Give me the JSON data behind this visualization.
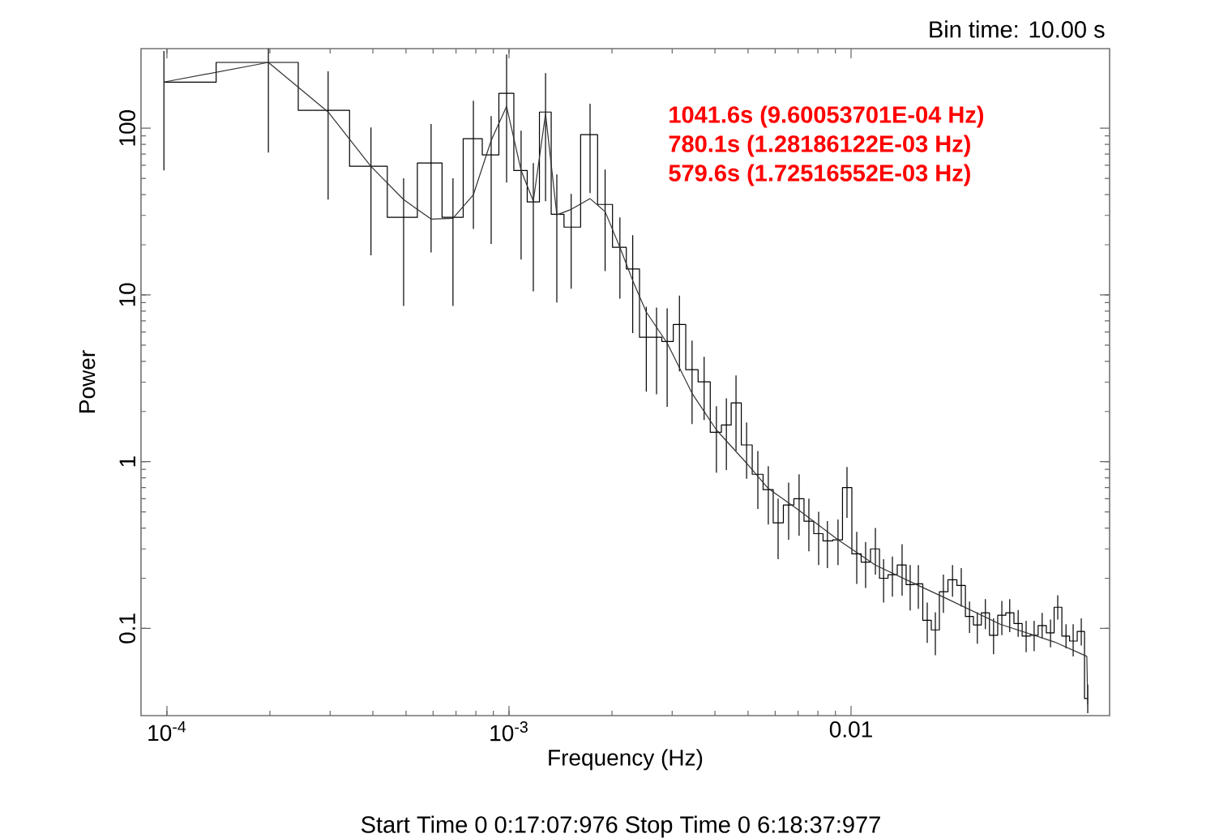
{
  "chart_data": {
    "type": "step",
    "xlabel": "Frequency (Hz)",
    "ylabel": "Power",
    "annotations": [
      "Bin time: 10.00 s",
      "1041.6s (9.60053701E-04 Hz)",
      "780.1s (1.28186122E-03 Hz)",
      "579.6s (1.72516552E-03 Hz)",
      "Start Time 0 0:17:07:976 Stop Time 0 6:18:37:977"
    ],
    "log": "xy",
    "xlim": [
      8.4e-05,
      0.057
    ],
    "ylim": [
      0.03,
      300
    ],
    "xticks": [
      {
        "value": 0.0001,
        "label": "10$^{-4}$"
      },
      {
        "value": 0.001,
        "label": "10$^{-3}$"
      },
      0.01
    ],
    "yticks": [
      0.1,
      1,
      10,
      100
    ],
    "series": [
      {
        "color": "#000000",
        "x": [
          9.8e-05,
          0.000198,
          0.000296,
          0.000395,
          0.000492,
          0.000592,
          0.000686,
          0.000787,
          0.000887,
          0.000984,
          0.001085,
          0.001178,
          0.001279,
          0.00138,
          0.00152,
          0.001726,
          0.00191,
          0.00211,
          0.0023,
          0.00252,
          0.0027,
          0.0029,
          0.00315,
          0.00343,
          0.00372,
          0.00404,
          0.00432,
          0.00461,
          0.00495,
          0.00534,
          0.00573,
          0.00612,
          0.00657,
          0.00705,
          0.00753,
          0.00804,
          0.00853,
          0.00916,
          0.00973,
          0.01039,
          0.01103,
          0.01178,
          0.01245,
          0.01321,
          0.0141,
          0.01489,
          0.01573,
          0.0167,
          0.01764,
          0.01862,
          0.0198,
          0.021,
          0.0222,
          0.0234,
          0.0247,
          0.0261,
          0.0276,
          0.0291,
          0.0308,
          0.0325,
          0.0343,
          0.0362,
          0.0383,
          0.0402,
          0.0425,
          0.0446,
          0.0471,
          0.0492
        ],
        "values": [
          189,
          248,
          128,
          59.1,
          29.2,
          61.8,
          29.2,
          86.5,
          69.2,
          162,
          55.8,
          36.1,
          125,
          30.5,
          25.5,
          91.4,
          34.9,
          19.3,
          14.3,
          5.57,
          5.57,
          5.26,
          6.65,
          3.56,
          3.01,
          1.5,
          1.66,
          2.25,
          1.26,
          0.84,
          0.68,
          0.43,
          0.55,
          0.6,
          0.44,
          0.37,
          0.335,
          0.34,
          0.7,
          0.28,
          0.25,
          0.3,
          0.2,
          0.21,
          0.24,
          0.183,
          0.185,
          0.112,
          0.098,
          0.166,
          0.196,
          0.181,
          0.118,
          0.105,
          0.124,
          0.091,
          0.12,
          0.124,
          0.107,
          0.09,
          0.091,
          0.104,
          0.094,
          0.134,
          0.09,
          0.084,
          0.096,
          0.038
        ],
        "errors": [
          [
            55.8,
            290
          ],
          [
            71.4,
            300
          ],
          [
            37.3,
            219
          ],
          [
            17.3,
            101
          ],
          [
            8.6,
            50
          ],
          [
            18.0,
            106
          ],
          [
            8.6,
            50
          ],
          [
            24.9,
            146
          ],
          [
            20.2,
            118
          ],
          [
            47.2,
            277
          ],
          [
            16.3,
            96.6
          ],
          [
            10.5,
            61.8
          ],
          [
            36.5,
            214
          ],
          [
            9.0,
            52.8
          ],
          [
            10.9,
            40.4
          ],
          [
            40.8,
            140
          ],
          [
            13.9,
            56.5
          ],
          [
            9.5,
            29.2
          ],
          [
            5.9,
            22.8
          ],
          [
            2.63,
            8.5
          ],
          [
            2.54,
            8.4
          ],
          [
            2.13,
            8.3
          ],
          [
            3.48,
            9.9
          ],
          [
            1.68,
            5.32
          ],
          [
            1.78,
            4.26
          ],
          [
            0.86,
            2.15
          ],
          [
            0.89,
            2.4
          ],
          [
            1.16,
            3.29
          ],
          [
            0.79,
            1.72
          ],
          [
            0.52,
            1.16
          ],
          [
            0.42,
            0.94
          ],
          [
            0.26,
            0.6
          ],
          [
            0.34,
            0.75
          ],
          [
            0.36,
            0.84
          ],
          [
            0.29,
            0.6
          ],
          [
            0.24,
            0.5
          ],
          [
            0.23,
            0.44
          ],
          [
            0.24,
            0.45
          ],
          [
            0.46,
            0.93
          ],
          [
            0.185,
            0.38
          ],
          [
            0.175,
            0.33
          ],
          [
            0.21,
            0.4
          ],
          [
            0.143,
            0.26
          ],
          [
            0.155,
            0.27
          ],
          [
            0.157,
            0.32
          ],
          [
            0.128,
            0.24
          ],
          [
            0.131,
            0.24
          ],
          [
            0.082,
            0.143
          ],
          [
            0.069,
            0.125
          ],
          [
            0.124,
            0.21
          ],
          [
            0.155,
            0.24
          ],
          [
            0.135,
            0.23
          ],
          [
            0.094,
            0.145
          ],
          [
            0.081,
            0.125
          ],
          [
            0.099,
            0.15
          ],
          [
            0.07,
            0.115
          ],
          [
            0.091,
            0.146
          ],
          [
            0.095,
            0.15
          ],
          [
            0.089,
            0.129
          ],
          [
            0.072,
            0.111
          ],
          [
            0.073,
            0.111
          ],
          [
            0.087,
            0.124
          ],
          [
            0.077,
            0.113
          ],
          [
            0.113,
            0.158
          ],
          [
            0.076,
            0.106
          ],
          [
            0.068,
            0.106
          ],
          [
            0.079,
            0.115
          ],
          [
            0.031,
            0.046
          ]
        ]
      },
      {
        "type": "line",
        "color": "#333333",
        "x": [
          9.8e-05,
          0.000198,
          0.000296,
          0.000395,
          0.000492,
          0.000592,
          0.000686,
          0.000787,
          0.000887,
          0.000984,
          0.001085,
          0.001178,
          0.001279,
          0.00138,
          0.00152,
          0.001726,
          0.00191,
          0.00211,
          0.0023,
          0.00252,
          0.0029,
          0.00343,
          0.00404,
          0.00495,
          0.00573,
          0.00705,
          0.00916,
          0.01178,
          0.01573,
          0.01904,
          0.0273,
          0.0393,
          0.0489,
          0.0492
        ],
        "values": [
          189,
          248,
          125,
          59,
          37.3,
          28.5,
          28.8,
          39.9,
          84.5,
          135,
          55.8,
          36.5,
          122,
          30.2,
          32.6,
          37.8,
          31.6,
          19.3,
          12.2,
          7.9,
          5.15,
          2.57,
          1.55,
          0.98,
          0.69,
          0.51,
          0.34,
          0.24,
          0.181,
          0.151,
          0.106,
          0.083,
          0.068,
          0.035
        ]
      }
    ]
  }
}
